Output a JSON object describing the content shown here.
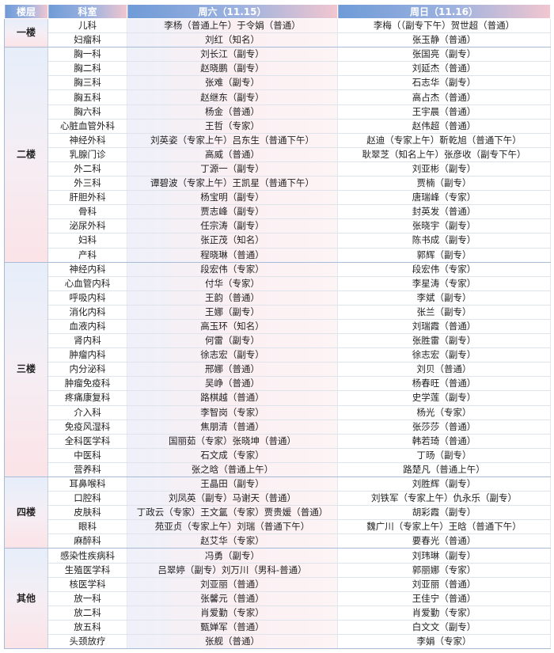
{
  "header": {
    "floor": "楼层",
    "dept": "科室",
    "sat": "周六（11.15）",
    "sun": "周日（11.16）"
  },
  "colors": {
    "header_start": "#6f9bd8",
    "header_end": "#f2c6cf"
  },
  "groups": [
    {
      "floor": "一楼",
      "rows": [
        {
          "dept": "儿科",
          "sat": "李杨（普通上午）于令娟（普通）",
          "sun": "李梅（（副专下午）贺世超（普通）"
        },
        {
          "dept": "妇瘤科",
          "sat": "刘红（知名）",
          "sun": "张玉静（普通）"
        }
      ]
    },
    {
      "floor": "二楼",
      "rows": [
        {
          "dept": "胸一科",
          "sat": "刘长江（副专）",
          "sun": "张国亮（副专）"
        },
        {
          "dept": "胸二科",
          "sat": "赵晓鹏（副专）",
          "sun": "刘延杰（普通）"
        },
        {
          "dept": "胸三科",
          "sat": "张难（副专）",
          "sun": "石志华（副专）"
        },
        {
          "dept": "胸五科",
          "sat": "赵继东（副专）",
          "sun": "高占杰（普通）"
        },
        {
          "dept": "胸六科",
          "sat": "杨金（普通）",
          "sun": "王宇晨（普通）"
        },
        {
          "dept": "心脏血管外科",
          "sat": "王哲（专家）",
          "sun": "赵伟超（普通）"
        },
        {
          "dept": "神经外科",
          "sat": "刘英姿（专家上午）吕东生（普通下午）",
          "sun": "赵迪（专家上午）靳乾旭（普通下午）"
        },
        {
          "dept": "乳腺门诊",
          "sat": "高威（普通）",
          "sun": "耿翠芝（知名上午）张彦收（副专下午）"
        },
        {
          "dept": "外二科",
          "sat": "丁源一（副专）",
          "sun": "刘亚彬（副专）"
        },
        {
          "dept": "外三科",
          "sat": "谭碧波（专家上午）王凯星（普通下午）",
          "sun": "贾楠（副专）"
        },
        {
          "dept": "肝胆外科",
          "sat": "杨宝明（副专）",
          "sun": "唐瑞峰（专家）"
        },
        {
          "dept": "骨科",
          "sat": "贾志峰（副专）",
          "sun": "封英发（普通）"
        },
        {
          "dept": "泌尿外科",
          "sat": "任宗涛（副专）",
          "sun": "张晓宇（副专）"
        },
        {
          "dept": "妇科",
          "sat": "张正茂（知名）",
          "sun": "陈书成（副专）"
        },
        {
          "dept": "产科",
          "sat": "程晓琳（普通）",
          "sun": "郭辉（副专）"
        }
      ]
    },
    {
      "floor": "三楼",
      "rows": [
        {
          "dept": "神经内科",
          "sat": "段宏伟（专家）",
          "sun": "段宏伟（专家）"
        },
        {
          "dept": "心血管内科",
          "sat": "付华（专家）",
          "sun": "李星涛（专家）"
        },
        {
          "dept": "呼吸内科",
          "sat": "王韵（普通）",
          "sun": "李斌（副专）"
        },
        {
          "dept": "消化内科",
          "sat": "王娜（副专）",
          "sun": "张兰（副专）"
        },
        {
          "dept": "血液内科",
          "sat": "高玉环（知名）",
          "sun": "刘瑞霞（普通）"
        },
        {
          "dept": "肾内科",
          "sat": "何雷（副专）",
          "sun": "张胜雷（副专）"
        },
        {
          "dept": "肿瘤内科",
          "sat": "徐志宏（副专）",
          "sun": "徐志宏（副专）"
        },
        {
          "dept": "内分泌科",
          "sat": "邢娜（普通）",
          "sun": "刘贝（普通）"
        },
        {
          "dept": "肿瘤免疫科",
          "sat": "吴峥（普通）",
          "sun": "杨春旺（普通）"
        },
        {
          "dept": "疼痛康复科",
          "sat": "路棋越（普通）",
          "sun": "史学莲（副专）"
        },
        {
          "dept": "介入科",
          "sat": "李智岗（专家）",
          "sun": "杨光（专家）"
        },
        {
          "dept": "免疫风湿科",
          "sat": "焦朋清（普通）",
          "sun": "张莎莎（普通）"
        },
        {
          "dept": "全科医学科",
          "sat": "国丽茹（专家）张晓坤（普通）",
          "sun": "韩若琦（普通）"
        },
        {
          "dept": "中医科",
          "sat": "石文成（专家）",
          "sun": "丁旸（副专）"
        },
        {
          "dept": "营养科",
          "sat": "张之晗（普通上午）",
          "sun": "路楚凡（普通上午）"
        }
      ]
    },
    {
      "floor": "四楼",
      "rows": [
        {
          "dept": "耳鼻喉科",
          "sat": "王晶田（副专）",
          "sun": "刘胜辉（副专）"
        },
        {
          "dept": "口腔科",
          "sat": "刘凤英（副专）马谢天（普通）",
          "sun": "刘铁军（专家上午）仇永乐（副专）"
        },
        {
          "dept": "皮肤科",
          "sat": "丁政云（专家）王文氲（专家）贾贵媛（普通）",
          "sun": "胡彩霞（副专）"
        },
        {
          "dept": "眼科",
          "sat": "苑亚贞（专家上午）刘瑞（普通下午）",
          "sun": "魏广川（专家上午）王晗（普通下午）"
        },
        {
          "dept": "麻醉科",
          "sat": "赵艾华（专家）",
          "sun": "要春光（普通）"
        }
      ]
    },
    {
      "floor": "其他",
      "rows": [
        {
          "dept": "感染性疾病科",
          "sat": "冯勇（副专）",
          "sun": "刘玮琳（副专）"
        },
        {
          "dept": "生殖医学科",
          "sat": "吕翠婷（副专）刘万川（男科-普通）",
          "sun": "郭丽娜（专家）"
        },
        {
          "dept": "核医学科",
          "sat": "刘亚丽（普通）",
          "sun": "刘亚丽（普通）"
        },
        {
          "dept": "放一科",
          "sat": "张馨元（普通）",
          "sun": "王佳宁（普通）"
        },
        {
          "dept": "放二科",
          "sat": "肖爱勤（专家）",
          "sun": "肖爱勤（专家）"
        },
        {
          "dept": "放五科",
          "sat": "甄婵军（普通）",
          "sun": "白文文（副专）"
        },
        {
          "dept": "头颈放疗",
          "sat": "张舰（普通）",
          "sun": "李娟（专家）"
        }
      ]
    }
  ]
}
